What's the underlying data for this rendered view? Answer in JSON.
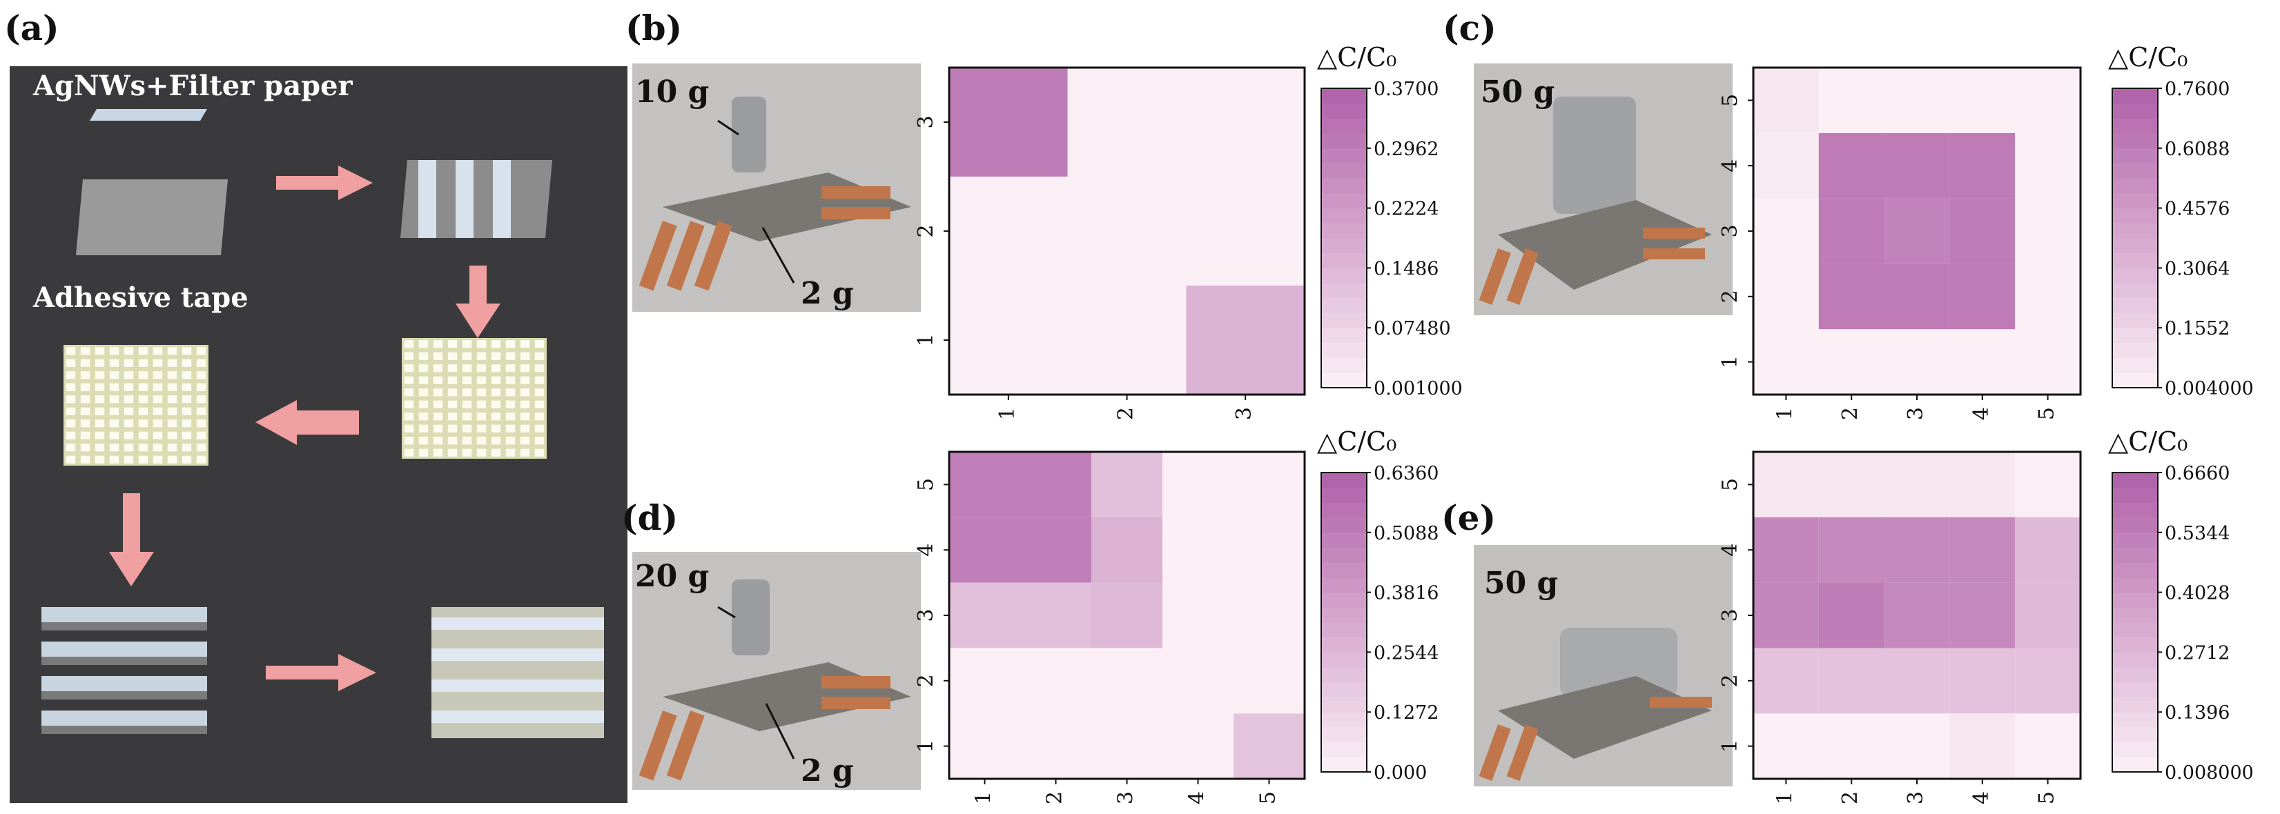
{
  "panels": {
    "a": {
      "label": "(a)",
      "title": "AgNWs+Filter paper",
      "subtitle": "Adhesive tape",
      "bg_color": "#3a3a3c",
      "arrow_color": "#f0a0a0"
    },
    "b": {
      "label": "(b)",
      "weight_main": "10 g",
      "weight_small": "2 g"
    },
    "c": {
      "label": "(c)",
      "weight_main": "50 g"
    },
    "d": {
      "label": "(d)",
      "weight_main": "20 g",
      "weight_small": "2 g"
    },
    "e": {
      "label": "(e)",
      "weight_main": "50 g"
    }
  },
  "colors": {
    "heat_low": "#fcf1f6",
    "heat_high": "#b060a8",
    "axis": "#111111"
  },
  "chart_data": [
    {
      "type": "heatmap",
      "panel": "b",
      "colorbar_title": "△C/C₀",
      "x": [
        "1",
        "2",
        "3"
      ],
      "y": [
        "1",
        "2",
        "3"
      ],
      "vmin": 0.001,
      "vmax": 0.37,
      "colorbar_ticks": [
        "0.001000",
        "0.07480",
        "0.1486",
        "0.2224",
        "0.2962",
        "0.3700"
      ],
      "z": [
        [
          0.004,
          0.004,
          0.16
        ],
        [
          0.004,
          0.004,
          0.004
        ],
        [
          0.3,
          0.004,
          0.004
        ]
      ]
    },
    {
      "type": "heatmap",
      "panel": "c",
      "colorbar_title": "△C/C₀",
      "x": [
        "1",
        "2",
        "3",
        "4",
        "5"
      ],
      "y": [
        "1",
        "2",
        "3",
        "4",
        "5"
      ],
      "vmin": 0.004,
      "vmax": 0.76,
      "colorbar_ticks": [
        "0.004000",
        "0.1552",
        "0.3064",
        "0.4576",
        "0.6088",
        "0.7600"
      ],
      "z": [
        [
          0.01,
          0.01,
          0.01,
          0.01,
          0.01
        ],
        [
          0.01,
          0.62,
          0.62,
          0.62,
          0.01
        ],
        [
          0.01,
          0.62,
          0.58,
          0.62,
          0.01
        ],
        [
          0.04,
          0.62,
          0.62,
          0.62,
          0.01
        ],
        [
          0.06,
          0.01,
          0.01,
          0.01,
          0.01
        ]
      ]
    },
    {
      "type": "heatmap",
      "panel": "d",
      "colorbar_title": "△C/C₀",
      "x": [
        "1",
        "2",
        "3",
        "4",
        "5"
      ],
      "y": [
        "1",
        "2",
        "3",
        "4",
        "5"
      ],
      "vmin": 0.0,
      "vmax": 0.636,
      "colorbar_ticks": [
        "0.000",
        "0.1272",
        "0.2544",
        "0.3816",
        "0.5088",
        "0.6360"
      ],
      "z": [
        [
          0.01,
          0.01,
          0.01,
          0.01,
          0.2
        ],
        [
          0.01,
          0.01,
          0.01,
          0.01,
          0.01
        ],
        [
          0.22,
          0.22,
          0.25,
          0.01,
          0.01
        ],
        [
          0.5,
          0.5,
          0.28,
          0.01,
          0.01
        ],
        [
          0.5,
          0.5,
          0.22,
          0.01,
          0.01
        ]
      ]
    },
    {
      "type": "heatmap",
      "panel": "e",
      "colorbar_title": "△C/C₀",
      "x": [
        "1",
        "2",
        "3",
        "4",
        "5"
      ],
      "y": [
        "1",
        "2",
        "3",
        "4",
        "5"
      ],
      "vmin": 0.008,
      "vmax": 0.666,
      "colorbar_ticks": [
        "0.008000",
        "0.1396",
        "0.2712",
        "0.4028",
        "0.5344",
        "0.6660"
      ],
      "z": [
        [
          0.02,
          0.02,
          0.02,
          0.06,
          0.02
        ],
        [
          0.22,
          0.22,
          0.22,
          0.22,
          0.22
        ],
        [
          0.5,
          0.54,
          0.48,
          0.48,
          0.26
        ],
        [
          0.5,
          0.48,
          0.48,
          0.48,
          0.26
        ],
        [
          0.06,
          0.06,
          0.06,
          0.06,
          0.02
        ]
      ]
    }
  ]
}
